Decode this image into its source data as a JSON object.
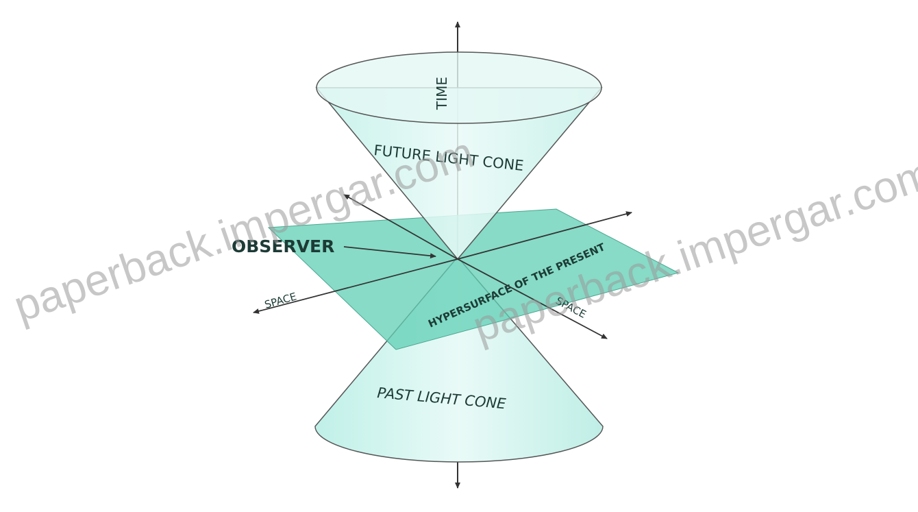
{
  "labels": {
    "time": "TIME",
    "future_cone": "FUTURE LIGHT CONE",
    "observer": "OBSERVER",
    "space_left": "SPACE",
    "space_right": "SPACE",
    "hypersurface": "HYPERSURFACE OF THE PRESENT",
    "past_cone": "PAST LIGHT CONE"
  },
  "watermarks": [
    "paperback.impergar.com",
    "paperback.impergar.com"
  ]
}
